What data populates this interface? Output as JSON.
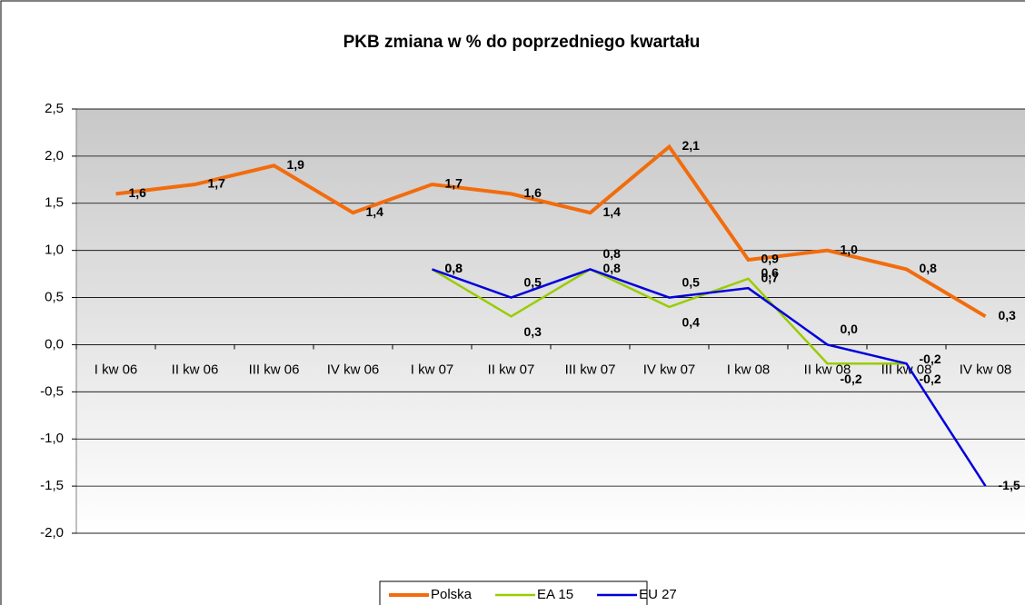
{
  "chart_data": {
    "type": "line",
    "title": "PKB zmiana w % do poprzedniego kwartału",
    "categories": [
      "I kw 06",
      "II kw 06",
      "III kw 06",
      "IV kw 06",
      "I kw 07",
      "II kw 07",
      "III kw 07",
      "IV kw 07",
      "I kw 08",
      "II kw 08",
      "III kw 08",
      "IV kw 08"
    ],
    "series": [
      {
        "name": "Polska",
        "color": "#f26c0d",
        "values": [
          1.6,
          1.7,
          1.9,
          1.4,
          1.7,
          1.6,
          1.4,
          2.1,
          0.9,
          1.0,
          0.8,
          0.3
        ],
        "value_labels": [
          "1,6",
          "1,7",
          "1,9",
          "1,4",
          "1,7",
          "1,6",
          "1,4",
          "2,1",
          "0,9",
          "1,0",
          "0,8",
          "0,3"
        ]
      },
      {
        "name": "EA 15",
        "color": "#99cc00",
        "values": [
          null,
          null,
          null,
          null,
          0.8,
          0.3,
          0.8,
          0.4,
          0.7,
          -0.2,
          -0.2,
          null
        ],
        "value_labels": [
          null,
          null,
          null,
          null,
          "0,8",
          "0,3",
          "0,8",
          "0,4",
          "0,7",
          "-0,2",
          "-0,2",
          null
        ]
      },
      {
        "name": "EU 27",
        "color": "#0000dd",
        "values": [
          null,
          null,
          null,
          null,
          0.8,
          0.5,
          0.8,
          0.5,
          0.6,
          0.0,
          -0.2,
          -1.5
        ],
        "value_labels": [
          null,
          null,
          null,
          null,
          "0,8",
          "0,5",
          "0,8",
          "0,5",
          "0,6",
          "0,0",
          "-0,2",
          "-1,5"
        ]
      }
    ],
    "ylim": [
      -2.0,
      2.5
    ],
    "yticks": [
      {
        "value": -2.0,
        "label": "-2,0"
      },
      {
        "value": -1.5,
        "label": "-1,5"
      },
      {
        "value": -1.0,
        "label": "-1,0"
      },
      {
        "value": -0.5,
        "label": "-0,5"
      },
      {
        "value": 0,
        "label": "0,0"
      },
      {
        "value": 0.5,
        "label": "0,5"
      },
      {
        "value": 1.0,
        "label": "1,0"
      },
      {
        "value": 1.5,
        "label": "1,5"
      },
      {
        "value": 2.0,
        "label": "2,0"
      },
      {
        "value": 2.5,
        "label": "2,5"
      }
    ],
    "grid": true,
    "legend": "bottom"
  }
}
